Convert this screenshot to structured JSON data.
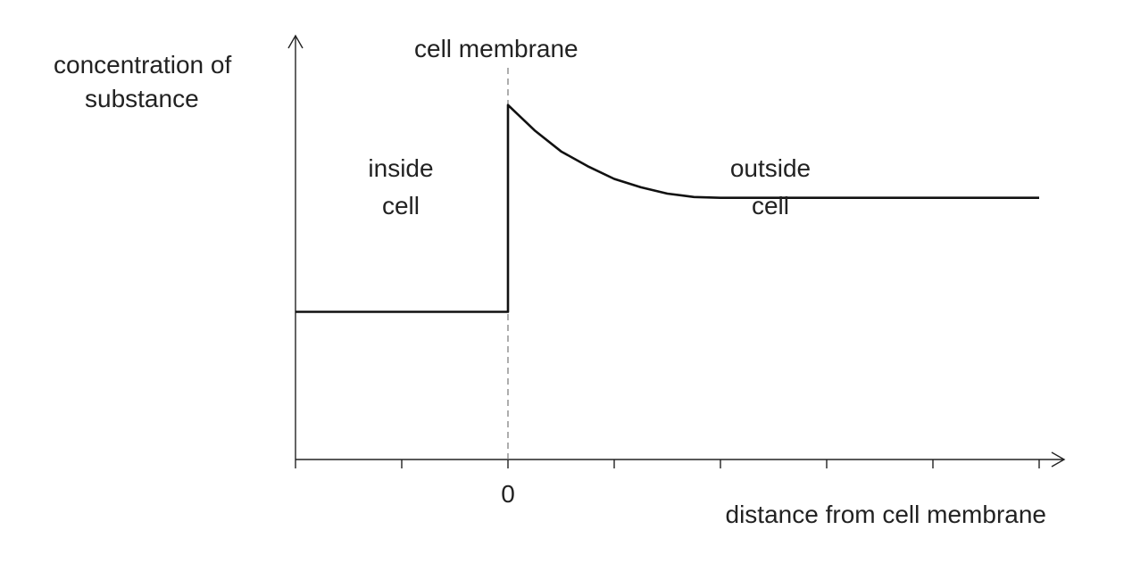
{
  "chart_data": {
    "type": "line",
    "ylabel_lines": [
      "concentration of",
      "substance"
    ],
    "xlabel": "distance from cell membrane",
    "membrane_label": "cell membrane",
    "region_inside": [
      "inside",
      "cell"
    ],
    "region_outside": [
      "outside",
      "cell"
    ],
    "tick_labels": [
      {
        "x": 0,
        "label": "0"
      }
    ],
    "x_ticks": [
      -2,
      -1,
      0,
      1,
      2,
      3,
      4,
      5
    ],
    "xlim": [
      -2,
      5
    ],
    "ylim": [
      0,
      10
    ],
    "membrane_x": 0,
    "series": [
      {
        "points": [
          [
            -2,
            3.5
          ],
          [
            0,
            3.5
          ],
          [
            0,
            8.4
          ],
          [
            0.25,
            7.8
          ],
          [
            0.5,
            7.3
          ],
          [
            0.75,
            6.95
          ],
          [
            1.0,
            6.65
          ],
          [
            1.25,
            6.45
          ],
          [
            1.5,
            6.3
          ],
          [
            1.75,
            6.22
          ],
          [
            2.0,
            6.2
          ],
          [
            5.0,
            6.2
          ]
        ]
      }
    ],
    "grid": false,
    "axes_arrows": true
  }
}
